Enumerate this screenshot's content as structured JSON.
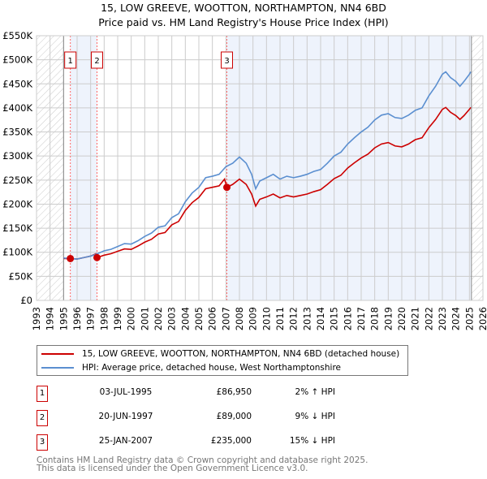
{
  "title_line1": "15, LOW GREEVE, WOOTTON, NORTHAMPTON, NN4 6BD",
  "title_line2": "Price paid vs. HM Land Registry's House Price Index (HPI)",
  "legend": {
    "red": "15, LOW GREEVE, WOOTTON, NORTHAMPTON, NN4 6BD (detached house)",
    "blue": "HPI: Average price, detached house, West Northamptonshire"
  },
  "colors": {
    "red": "#cc0000",
    "blue": "#5b8fd0",
    "shade": "#eef3fc"
  },
  "sales": [
    {
      "n": "1",
      "date": "03-JUL-1995",
      "price": "£86,950",
      "hpi": "2% ↑ HPI"
    },
    {
      "n": "2",
      "date": "20-JUN-1997",
      "price": "£89,000",
      "hpi": "9% ↓ HPI"
    },
    {
      "n": "3",
      "date": "25-JAN-2007",
      "price": "£235,000",
      "hpi": "15% ↓ HPI"
    }
  ],
  "footer": [
    "Contains HM Land Registry data © Crown copyright and database right 2025.",
    "This data is licensed under the Open Government Licence v3.0."
  ],
  "chart_data": {
    "type": "line",
    "xlim": [
      1993,
      2026
    ],
    "ylim": [
      0,
      550000
    ],
    "x_ticks": [
      "1993",
      "1994",
      "1995",
      "1996",
      "1997",
      "1998",
      "1999",
      "2000",
      "2001",
      "2002",
      "2003",
      "2004",
      "2005",
      "2006",
      "2007",
      "2008",
      "2009",
      "2010",
      "2011",
      "2012",
      "2013",
      "2014",
      "2015",
      "2016",
      "2017",
      "2018",
      "2019",
      "2020",
      "2021",
      "2022",
      "2023",
      "2024",
      "2025",
      "2026"
    ],
    "y_ticks": [
      {
        "v": 0,
        "l": "£0"
      },
      {
        "v": 50000,
        "l": "£50K"
      },
      {
        "v": 100000,
        "l": "£100K"
      },
      {
        "v": 150000,
        "l": "£150K"
      },
      {
        "v": 200000,
        "l": "£200K"
      },
      {
        "v": 250000,
        "l": "£250K"
      },
      {
        "v": 300000,
        "l": "£300K"
      },
      {
        "v": 350000,
        "l": "£350K"
      },
      {
        "v": 400000,
        "l": "£400K"
      },
      {
        "v": 450000,
        "l": "£450K"
      },
      {
        "v": 500000,
        "l": "£500K"
      },
      {
        "v": 550000,
        "l": "£550K"
      }
    ],
    "data_range": [
      1995.0,
      2025.15
    ],
    "sale_points": [
      {
        "label": "1",
        "x": 1995.5,
        "y": 86950
      },
      {
        "label": "2",
        "x": 1997.47,
        "y": 89000
      },
      {
        "label": "3",
        "x": 2007.07,
        "y": 235000
      }
    ],
    "series": [
      {
        "name": "HPI",
        "color": "#5b8fd0",
        "points": [
          [
            1995,
            88
          ],
          [
            1995.5,
            87
          ],
          [
            1996,
            86
          ],
          [
            1996.5,
            89
          ],
          [
            1997,
            92
          ],
          [
            1997.5,
            97
          ],
          [
            1998,
            103
          ],
          [
            1998.5,
            106
          ],
          [
            1999,
            112
          ],
          [
            1999.5,
            118
          ],
          [
            2000,
            117
          ],
          [
            2000.5,
            124
          ],
          [
            2001,
            133
          ],
          [
            2001.5,
            140
          ],
          [
            2002,
            152
          ],
          [
            2002.5,
            155
          ],
          [
            2003,
            172
          ],
          [
            2003.5,
            180
          ],
          [
            2004,
            205
          ],
          [
            2004.5,
            223
          ],
          [
            2005,
            235
          ],
          [
            2005.5,
            255
          ],
          [
            2006,
            258
          ],
          [
            2006.5,
            262
          ],
          [
            2007,
            278
          ],
          [
            2007.5,
            285
          ],
          [
            2008,
            298
          ],
          [
            2008.5,
            285
          ],
          [
            2008.9,
            262
          ],
          [
            2009.2,
            232
          ],
          [
            2009.5,
            248
          ],
          [
            2010,
            255
          ],
          [
            2010.5,
            262
          ],
          [
            2011,
            252
          ],
          [
            2011.5,
            258
          ],
          [
            2012,
            255
          ],
          [
            2012.5,
            258
          ],
          [
            2013,
            262
          ],
          [
            2013.5,
            268
          ],
          [
            2014,
            272
          ],
          [
            2014.5,
            285
          ],
          [
            2015,
            300
          ],
          [
            2015.5,
            308
          ],
          [
            2016,
            325
          ],
          [
            2016.5,
            338
          ],
          [
            2017,
            350
          ],
          [
            2017.5,
            360
          ],
          [
            2018,
            375
          ],
          [
            2018.5,
            385
          ],
          [
            2019,
            388
          ],
          [
            2019.5,
            380
          ],
          [
            2020,
            378
          ],
          [
            2020.5,
            385
          ],
          [
            2021,
            395
          ],
          [
            2021.5,
            400
          ],
          [
            2022,
            425
          ],
          [
            2022.5,
            445
          ],
          [
            2023,
            470
          ],
          [
            2023.25,
            475
          ],
          [
            2023.6,
            463
          ],
          [
            2024,
            455
          ],
          [
            2024.3,
            445
          ],
          [
            2024.6,
            455
          ],
          [
            2025,
            470
          ],
          [
            2025.1,
            475
          ]
        ]
      },
      {
        "name": "Property",
        "color": "#cc0000",
        "points": [
          [
            1995,
            87
          ],
          [
            1995.5,
            87
          ],
          [
            1996,
            86
          ],
          [
            1996.5,
            89
          ],
          [
            1997,
            92
          ],
          [
            1997.4,
            97
          ],
          [
            1997.5,
            89
          ],
          [
            1998,
            94
          ],
          [
            1998.5,
            97
          ],
          [
            1999,
            102
          ],
          [
            1999.5,
            107
          ],
          [
            2000,
            106
          ],
          [
            2000.5,
            113
          ],
          [
            2001,
            121
          ],
          [
            2001.5,
            127
          ],
          [
            2002,
            138
          ],
          [
            2002.5,
            141
          ],
          [
            2003,
            157
          ],
          [
            2003.5,
            164
          ],
          [
            2004,
            187
          ],
          [
            2004.5,
            203
          ],
          [
            2005,
            214
          ],
          [
            2005.5,
            232
          ],
          [
            2006,
            235
          ],
          [
            2006.5,
            238
          ],
          [
            2006.9,
            252
          ],
          [
            2007.07,
            235
          ],
          [
            2007.5,
            241
          ],
          [
            2008,
            252
          ],
          [
            2008.5,
            241
          ],
          [
            2008.9,
            221
          ],
          [
            2009.2,
            196
          ],
          [
            2009.5,
            210
          ],
          [
            2010,
            215
          ],
          [
            2010.5,
            221
          ],
          [
            2011,
            213
          ],
          [
            2011.5,
            218
          ],
          [
            2012,
            215
          ],
          [
            2012.5,
            218
          ],
          [
            2013,
            221
          ],
          [
            2013.5,
            226
          ],
          [
            2014,
            230
          ],
          [
            2014.5,
            241
          ],
          [
            2015,
            253
          ],
          [
            2015.5,
            260
          ],
          [
            2016,
            275
          ],
          [
            2016.5,
            286
          ],
          [
            2017,
            296
          ],
          [
            2017.5,
            304
          ],
          [
            2018,
            317
          ],
          [
            2018.5,
            325
          ],
          [
            2019,
            328
          ],
          [
            2019.5,
            321
          ],
          [
            2020,
            319
          ],
          [
            2020.5,
            325
          ],
          [
            2021,
            334
          ],
          [
            2021.5,
            338
          ],
          [
            2022,
            359
          ],
          [
            2022.5,
            376
          ],
          [
            2023,
            397
          ],
          [
            2023.25,
            401
          ],
          [
            2023.6,
            391
          ],
          [
            2024,
            384
          ],
          [
            2024.3,
            376
          ],
          [
            2024.6,
            384
          ],
          [
            2025,
            397
          ],
          [
            2025.1,
            401
          ]
        ]
      }
    ],
    "value_unit": "thousands GBP"
  }
}
